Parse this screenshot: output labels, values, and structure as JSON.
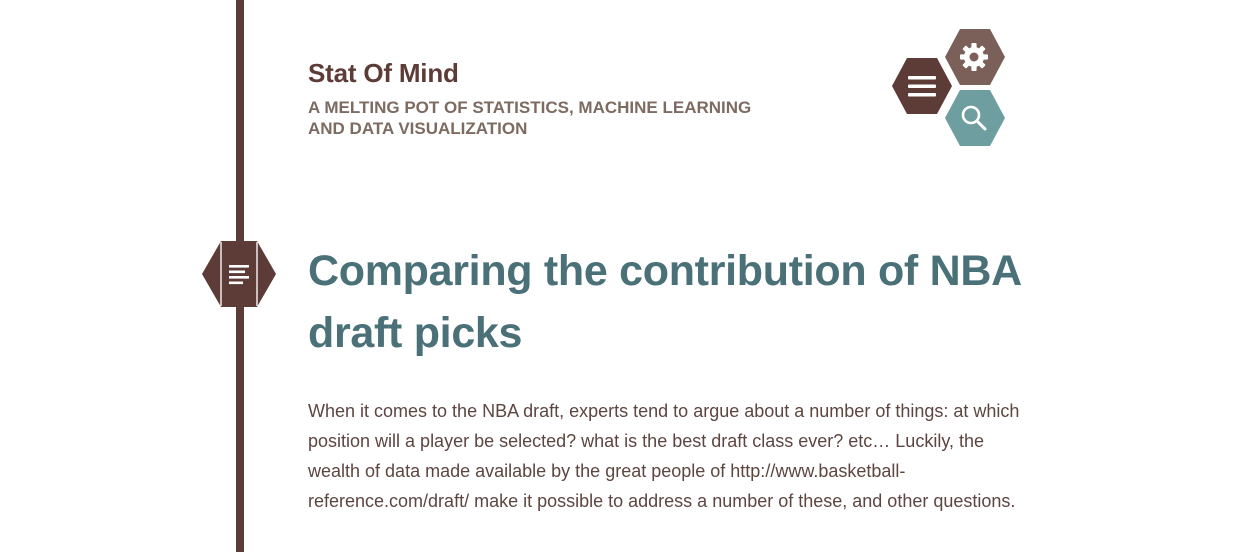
{
  "site": {
    "title": "Stat Of Mind",
    "tagline": "A MELTING POT OF STATISTICS, MACHINE LEARNING AND DATA VISUALIZATION"
  },
  "nav": {
    "menu_icon": "hamburger-menu-icon",
    "settings_icon": "gear-icon",
    "search_icon": "search-icon"
  },
  "post": {
    "format_icon": "text-lines-icon",
    "title": "Comparing the contribution of NBA draft picks",
    "body": "When it comes to the NBA draft, experts tend to argue about a number of things: at which position will a player be selected? what is the best draft class ever? etc… Luckily, the wealth of data made available by the great people of http://www.basketball-reference.com/draft/ make it possible to address a number of these, and other questions."
  },
  "colors": {
    "brown": "#5d3c37",
    "taupe": "#7a6058",
    "teal": "#6e9ea0",
    "title_teal": "#4a7078"
  }
}
